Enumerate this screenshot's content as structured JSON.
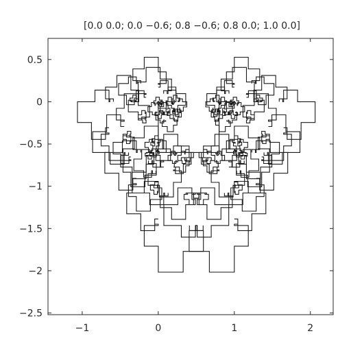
{
  "chart_data": {
    "type": "line",
    "title": "[0.0 0.0; 0.0 −0.6; 0.8 −0.6; 0.8 0.0; 1.0 0.0]",
    "xlabel": "",
    "ylabel": "",
    "xlim": [
      -1.45,
      2.3
    ],
    "ylim": [
      -2.52,
      0.75
    ],
    "xticks": [
      -1,
      0,
      1,
      2
    ],
    "xtick_labels": [
      "−1",
      "0",
      "1",
      "2"
    ],
    "yticks": [
      0.5,
      0,
      -0.5,
      -1,
      -1.5,
      -2,
      -2.5
    ],
    "ytick_labels": [
      "0.5",
      "0",
      "−0.5",
      "−1",
      "−1.5",
      "−2",
      "−2.5"
    ],
    "grid": false,
    "line_color": "#1a1a1a",
    "series": [
      {
        "x": [
          0.0,
          0.0,
          0.8,
          0.8,
          1.0
        ],
        "y": [
          0.0,
          -0.6,
          -0.6,
          0.0,
          0.0
        ]
      }
    ],
    "fractal_depth": 5
  }
}
